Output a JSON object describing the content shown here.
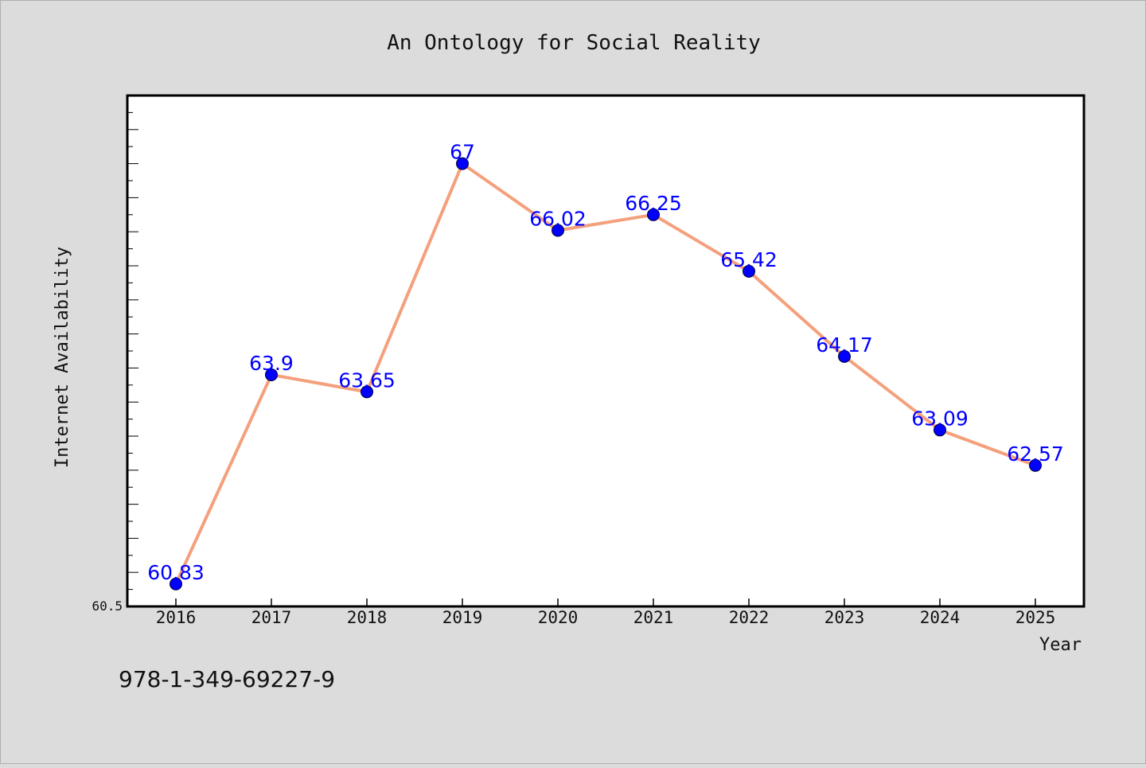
{
  "chart_data": {
    "type": "line",
    "title": "An Ontology for Social Reality",
    "xlabel": "Year",
    "ylabel": "Internet Availability",
    "categories": [
      "2016",
      "2017",
      "2018",
      "2019",
      "2020",
      "2021",
      "2022",
      "2023",
      "2024",
      "2025"
    ],
    "series": [
      {
        "values": [
          60.83,
          63.9,
          63.65,
          67,
          66.02,
          66.25,
          65.42,
          64.17,
          63.09,
          62.57
        ],
        "labels": [
          "60.83",
          "63.9",
          "63.65",
          "67",
          "66.02",
          "66.25",
          "65.42",
          "64.17",
          "63.09",
          "62.57"
        ],
        "line_color": "#f4a07c",
        "marker_color": "#0000ff"
      }
    ],
    "ylim": [
      60.5,
      68.0
    ],
    "y_tick_label": "60.5",
    "grid": false,
    "footer_text": "978-1-349-69227-9"
  }
}
